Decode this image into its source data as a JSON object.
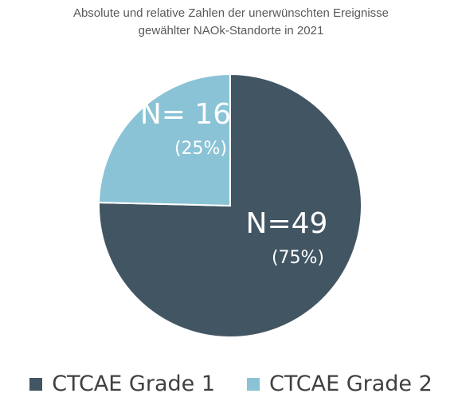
{
  "chart_data": {
    "type": "pie",
    "title_lines": [
      "Absolute und relative Zahlen der unerwünschten Ereignisse",
      "gewählter NAOk-Standorte in 2021"
    ],
    "slices": [
      {
        "name": "CTCAE Grade 1",
        "value": 49,
        "count_label": "N=49",
        "percent_label": "(75%)",
        "color": "#425563"
      },
      {
        "name": "CTCAE Grade 2",
        "value": 16,
        "count_label": "N= 16",
        "percent_label": "(25%)",
        "color": "#8BC3D6"
      }
    ],
    "legend_position": "bottom"
  }
}
